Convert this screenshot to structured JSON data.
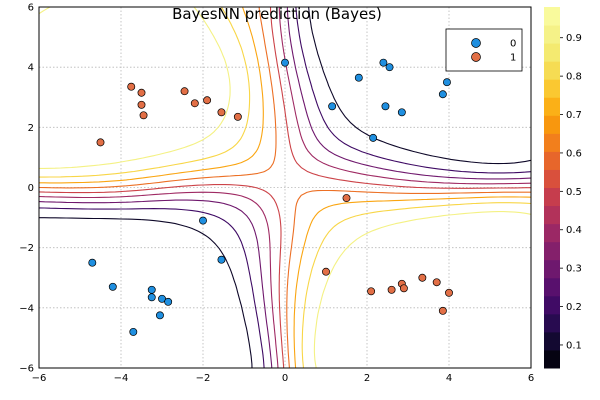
{
  "chart_data": {
    "type": "scatter",
    "title": "BayesNN prediction (Bayes)",
    "xlabel": "",
    "ylabel": "",
    "xlim": [
      -6,
      6
    ],
    "ylim": [
      -6,
      6
    ],
    "xticks": [
      -6,
      -4,
      -2,
      0,
      2,
      4,
      6
    ],
    "yticks": [
      -6,
      -4,
      -2,
      0,
      2,
      4,
      6
    ],
    "grid": true,
    "legend_position": "top-right",
    "series": [
      {
        "name": "0",
        "color": "#1f8fe0",
        "points": [
          [
            0.0,
            4.15
          ],
          [
            1.8,
            3.65
          ],
          [
            2.4,
            4.15
          ],
          [
            2.55,
            4.0
          ],
          [
            1.15,
            2.7
          ],
          [
            2.45,
            2.7
          ],
          [
            2.85,
            2.5
          ],
          [
            2.15,
            1.65
          ],
          [
            3.85,
            3.1
          ],
          [
            3.95,
            3.5
          ],
          [
            -2.0,
            -1.1
          ],
          [
            -1.55,
            -2.4
          ],
          [
            -4.7,
            -2.5
          ],
          [
            -4.2,
            -3.3
          ],
          [
            -3.25,
            -3.4
          ],
          [
            -3.25,
            -3.65
          ],
          [
            -3.0,
            -3.7
          ],
          [
            -2.85,
            -3.8
          ],
          [
            -3.05,
            -4.25
          ],
          [
            -3.7,
            -4.8
          ]
        ]
      },
      {
        "name": "1",
        "color": "#e26f46",
        "points": [
          [
            -3.75,
            3.35
          ],
          [
            -3.5,
            3.15
          ],
          [
            -3.5,
            2.75
          ],
          [
            -3.45,
            2.4
          ],
          [
            -4.5,
            1.5
          ],
          [
            -2.45,
            3.2
          ],
          [
            -2.2,
            2.8
          ],
          [
            -1.9,
            2.9
          ],
          [
            -1.55,
            2.5
          ],
          [
            -1.15,
            2.35
          ],
          [
            1.5,
            -0.35
          ],
          [
            1.0,
            -2.8
          ],
          [
            2.1,
            -3.45
          ],
          [
            2.6,
            -3.4
          ],
          [
            2.85,
            -3.2
          ],
          [
            2.9,
            -3.35
          ],
          [
            3.35,
            -3.0
          ],
          [
            3.7,
            -3.15
          ],
          [
            3.85,
            -4.1
          ],
          [
            4.0,
            -3.5
          ]
        ]
      }
    ],
    "colorbar": {
      "ticks": [
        0.1,
        0.2,
        0.3,
        0.4,
        0.5,
        0.6,
        0.7,
        0.8,
        0.9
      ],
      "min": 0.04,
      "max": 0.98,
      "levels": 20,
      "colors": [
        "#000004",
        "#0a0722",
        "#1e0c45",
        "#380962",
        "#510e6c",
        "#69166e",
        "#801f6c",
        "#982766",
        "#b0315b",
        "#c63d4d",
        "#d9503c",
        "#e8682a",
        "#f3821a",
        "#f99c0c",
        "#fbb61a",
        "#f9cf3a",
        "#f5e25f",
        "#f3ee7a",
        "#f6f593",
        "#fcffa4"
      ]
    },
    "contour_levels": [
      0.1,
      0.2,
      0.3,
      0.4,
      0.5,
      0.6,
      0.7,
      0.8,
      0.9
    ]
  }
}
